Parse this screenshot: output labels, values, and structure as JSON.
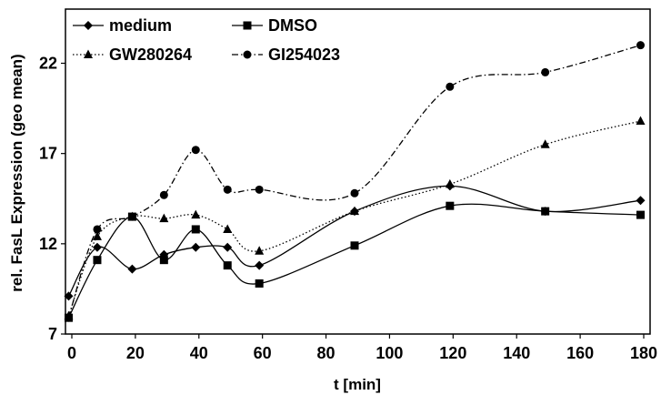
{
  "chart_data": {
    "type": "line",
    "title": "",
    "xlabel": "t [min]",
    "ylabel": "rel. FasL Expression (geo mean)",
    "xlim": [
      0,
      180
    ],
    "ylim": [
      7,
      25
    ],
    "xticks": [
      0,
      20,
      40,
      60,
      80,
      100,
      120,
      140,
      160,
      180
    ],
    "yticks": [
      7,
      12,
      17,
      22
    ],
    "grid": false,
    "legend_position": "top-left",
    "series": [
      {
        "name": "medium",
        "marker": "diamond",
        "linestyle": "solid",
        "color": "#000000",
        "x": [
          -1,
          8,
          19,
          29,
          39,
          49,
          59,
          89,
          119,
          149,
          179
        ],
        "y": [
          9.1,
          11.8,
          10.6,
          11.4,
          11.8,
          11.8,
          10.8,
          13.8,
          15.2,
          13.8,
          14.4
        ]
      },
      {
        "name": "DMSO",
        "marker": "square",
        "linestyle": "solid",
        "color": "#000000",
        "x": [
          -1,
          8,
          19,
          29,
          39,
          49,
          59,
          89,
          119,
          149,
          179
        ],
        "y": [
          7.9,
          11.1,
          13.5,
          11.1,
          12.8,
          10.8,
          9.8,
          11.9,
          14.1,
          13.8,
          13.6
        ]
      },
      {
        "name": "GW280264",
        "marker": "triangle",
        "linestyle": "dotted",
        "color": "#000000",
        "x": [
          -1,
          8,
          19,
          29,
          39,
          49,
          59,
          89,
          119,
          149,
          179
        ],
        "y": [
          8.0,
          12.4,
          13.5,
          13.4,
          13.6,
          12.8,
          11.6,
          13.8,
          15.3,
          17.5,
          18.8
        ]
      },
      {
        "name": "GI254023",
        "marker": "circle",
        "linestyle": "dashdot",
        "color": "#000000",
        "x": [
          -1,
          8,
          19,
          29,
          39,
          49,
          59,
          89,
          119,
          149,
          179
        ],
        "y": [
          7.9,
          12.8,
          13.5,
          14.7,
          17.2,
          15.0,
          15.0,
          14.8,
          20.7,
          21.5,
          23.0
        ]
      }
    ]
  }
}
